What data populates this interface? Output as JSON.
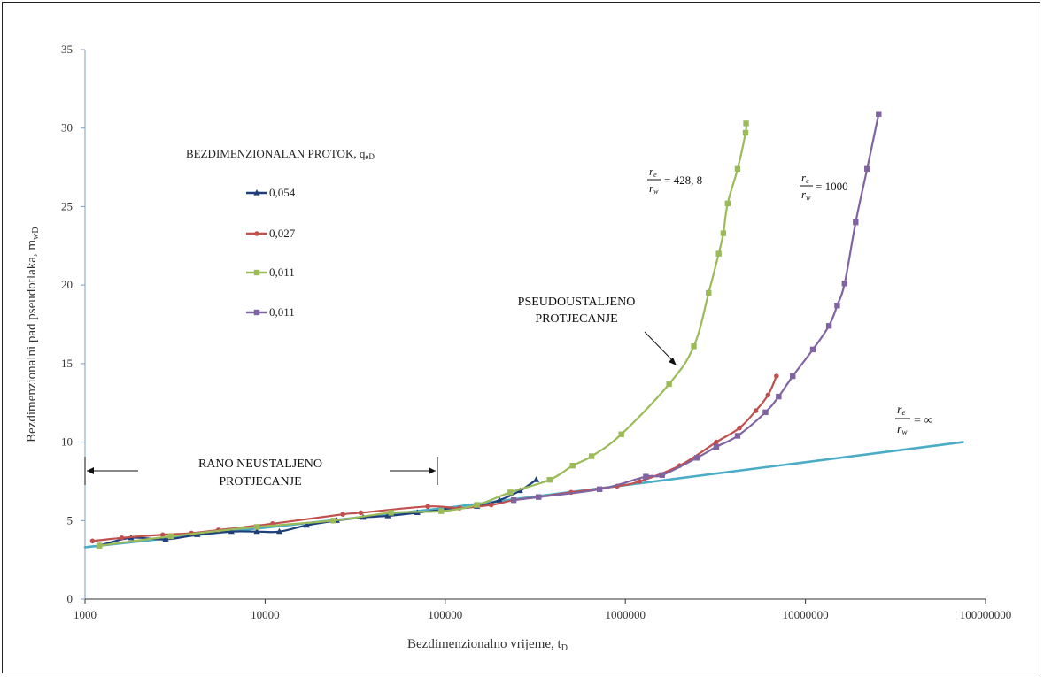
{
  "chart_data": {
    "type": "line",
    "xscale": "log",
    "xlim": [
      1000,
      100000000
    ],
    "ylim": [
      0,
      35
    ],
    "xticks": [
      "1000",
      "10000",
      "100000",
      "1000000",
      "10000000",
      "100000000"
    ],
    "yticks": [
      "0",
      "5",
      "10",
      "15",
      "20",
      "25",
      "30",
      "35"
    ],
    "xlabel": "Bezdimenzionalno  vrijeme,  t",
    "xlabel_sub": "D",
    "ylabel": "Bezdimenzionalni  pad pseudotlaka, m",
    "ylabel_sub": "wD",
    "legend_title": "BEZDIMENZIONALAN  PROTOK, q",
    "legend_title_sub": "eD",
    "series": [
      {
        "name": "0,054",
        "color": "#1f3f7a",
        "marker": "triangle",
        "points": [
          [
            1200,
            3.4
          ],
          [
            1800,
            3.9
          ],
          [
            2800,
            3.8
          ],
          [
            4200,
            4.1
          ],
          [
            6500,
            4.3
          ],
          [
            9000,
            4.3
          ],
          [
            12000,
            4.3
          ],
          [
            17000,
            4.7
          ],
          [
            25000,
            5.0
          ],
          [
            35000,
            5.2
          ],
          [
            48000,
            5.3
          ],
          [
            70000,
            5.5
          ],
          [
            100000,
            5.7
          ],
          [
            150000,
            5.9
          ],
          [
            200000,
            6.3
          ],
          [
            260000,
            6.9
          ],
          [
            320000,
            7.6
          ]
        ]
      },
      {
        "name": "0,027",
        "color": "#c0504d",
        "marker": "circle",
        "points": [
          [
            1100,
            3.7
          ],
          [
            1600,
            3.9
          ],
          [
            2700,
            4.1
          ],
          [
            3900,
            4.2
          ],
          [
            5500,
            4.4
          ],
          [
            11000,
            4.8
          ],
          [
            27000,
            5.4
          ],
          [
            34000,
            5.5
          ],
          [
            80000,
            5.9
          ],
          [
            120000,
            5.8
          ],
          [
            180000,
            6.0
          ],
          [
            240000,
            6.3
          ],
          [
            330000,
            6.5
          ],
          [
            500000,
            6.8
          ],
          [
            900000,
            7.2
          ],
          [
            1200000,
            7.5
          ],
          [
            2000000,
            8.5
          ],
          [
            3200000,
            10.0
          ],
          [
            4300000,
            10.9
          ],
          [
            5300000,
            12.0
          ],
          [
            6200000,
            13.0
          ],
          [
            6900000,
            14.2
          ]
        ]
      },
      {
        "name": "0,011",
        "color": "#9bbb59",
        "marker": "square",
        "points": [
          [
            1200,
            3.4
          ],
          [
            3000,
            4.0
          ],
          [
            9000,
            4.6
          ],
          [
            24000,
            5.0
          ],
          [
            50000,
            5.5
          ],
          [
            95000,
            5.6
          ],
          [
            150000,
            6.0
          ],
          [
            230000,
            6.8
          ],
          [
            380000,
            7.6
          ],
          [
            510000,
            8.5
          ],
          [
            650000,
            9.1
          ],
          [
            950000,
            10.5
          ],
          [
            1750000,
            13.7
          ],
          [
            2400000,
            16.1
          ],
          [
            2900000,
            19.5
          ],
          [
            3300000,
            22.0
          ],
          [
            3500000,
            23.3
          ],
          [
            3700000,
            25.2
          ],
          [
            4200000,
            27.4
          ],
          [
            4650000,
            29.7
          ],
          [
            4680000,
            30.3
          ]
        ]
      },
      {
        "name": "0,011",
        "color": "#8064a2",
        "marker": "square",
        "points": [
          [
            240000,
            6.3
          ],
          [
            330000,
            6.5
          ],
          [
            720000,
            7.0
          ],
          [
            1300000,
            7.8
          ],
          [
            1600000,
            7.9
          ],
          [
            2500000,
            9.0
          ],
          [
            3200000,
            9.7
          ],
          [
            4200000,
            10.4
          ],
          [
            6000000,
            11.9
          ],
          [
            7100000,
            12.9
          ],
          [
            8500000,
            14.2
          ],
          [
            11000000,
            15.9
          ],
          [
            13500000,
            17.4
          ],
          [
            15000000,
            18.7
          ],
          [
            16500000,
            20.1
          ],
          [
            19000000,
            24.0
          ],
          [
            22000000,
            27.4
          ],
          [
            25500000,
            30.9
          ]
        ]
      },
      {
        "name": "",
        "color": "#4bacc6",
        "marker": "none",
        "points": [
          [
            1000,
            3.3
          ],
          [
            100000,
            5.8
          ],
          [
            75000000,
            10.0
          ]
        ]
      }
    ],
    "annotations": {
      "rano": [
        "RANO NEUSTALJENO",
        "PROTJECANJE"
      ],
      "pseudo": [
        "PSEUDOUSTALJENO",
        "PROTJECANJE"
      ],
      "ratio_left": "r",
      "ratio_left_sub": "e",
      "ratio_den": "r",
      "ratio_den_sub": "w",
      "ratio1_value": "= 428, 8",
      "ratio2_value": "= 1000",
      "ratio3_value": "= ∞"
    }
  }
}
